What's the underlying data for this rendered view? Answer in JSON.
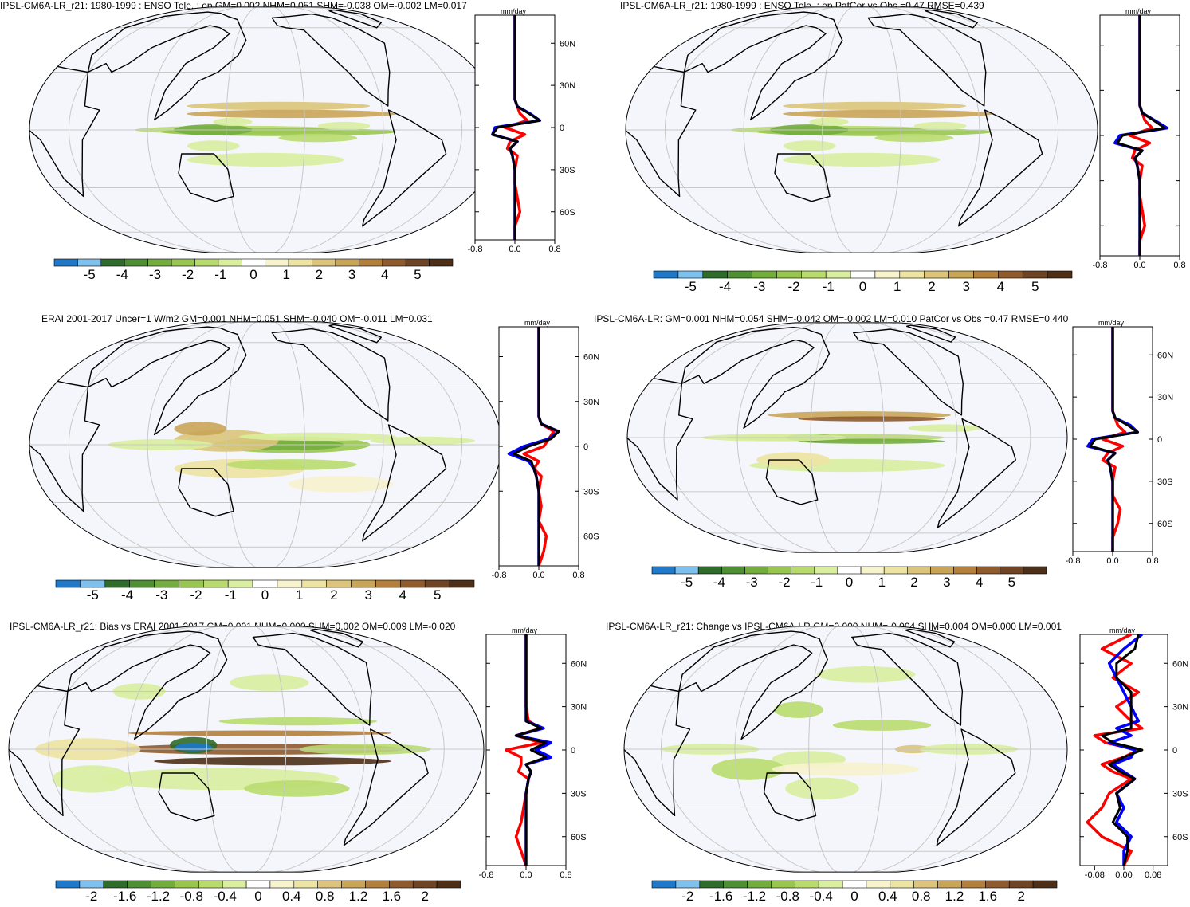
{
  "chart_data": [
    {
      "type": "heatmap",
      "title": "IPSL-CM6A-LR_r21: 1980-1999 : ENSO Tele. : ep GM=0.002 NHM=0.051 SHM=-0.038 OM=-0.002 LM=0.017",
      "colorbar_ticks": [
        "-5",
        "-4",
        "-3",
        "-2",
        "-1",
        "0",
        "1",
        "2",
        "3",
        "4",
        "5"
      ],
      "zonal_mean": {
        "type": "line",
        "unit": "mm/day",
        "x_ticks": [
          "-0.8",
          "0.0",
          "0.8"
        ],
        "xlim": [
          -0.8,
          0.8
        ],
        "ylim": [
          -80,
          80
        ],
        "lat_ticks": [
          "60N",
          "30N",
          "0",
          "30S",
          "60S"
        ],
        "lat_values": [
          -80,
          -70,
          -60,
          -50,
          -40,
          -30,
          -20,
          -15,
          -10,
          -5,
          0,
          5,
          10,
          15,
          20,
          30,
          40,
          50,
          60,
          70,
          80
        ],
        "series": [
          {
            "color": "#ff0000",
            "values": [
              0.0,
              0.0,
              0.1,
              0.05,
              0.0,
              0.0,
              0.05,
              -0.15,
              -0.1,
              0.2,
              -0.2,
              0.25,
              0.1,
              0.05,
              0.0,
              0.0,
              0.0,
              0.0,
              0.0,
              0.0,
              0.0
            ]
          },
          {
            "color": "#0000ff",
            "values": [
              0.0,
              0.0,
              0.0,
              0.0,
              0.0,
              0.0,
              -0.05,
              -0.1,
              0.05,
              -0.45,
              -0.4,
              0.5,
              0.3,
              0.05,
              0.0,
              0.0,
              0.0,
              0.0,
              0.0,
              0.0,
              0.0
            ]
          },
          {
            "color": "#000000",
            "values": [
              0.0,
              0.0,
              0.0,
              0.0,
              0.0,
              0.0,
              -0.05,
              -0.1,
              0.05,
              -0.45,
              -0.35,
              0.5,
              0.28,
              0.05,
              0.0,
              0.0,
              0.0,
              0.0,
              0.0,
              0.0,
              0.0
            ]
          }
        ]
      }
    },
    {
      "type": "heatmap",
      "title": "IPSL-CM6A-LR_r21: 1980-1999 : ENSO Tele. : ep PatCor vs Obs =0.47 RMSE=0.439",
      "colorbar_ticks": [
        "-5",
        "-4",
        "-3",
        "-2",
        "-1",
        "0",
        "1",
        "2",
        "3",
        "4",
        "5"
      ],
      "zonal_mean": {
        "type": "line",
        "unit": "mm/day",
        "x_ticks": [
          "-0.8",
          "0.0",
          "0.8"
        ],
        "xlim": [
          -0.8,
          0.8
        ],
        "ylim": [
          -80,
          80
        ],
        "lat_ticks": [],
        "lat_values": [
          -80,
          -70,
          -60,
          -50,
          -40,
          -30,
          -20,
          -15,
          -10,
          -5,
          0,
          5,
          10,
          15,
          20,
          30,
          40,
          50,
          60,
          70,
          80
        ],
        "series": [
          {
            "color": "#ff0000",
            "values": [
              0.0,
              0.0,
              0.1,
              0.05,
              0.0,
              0.0,
              0.05,
              -0.15,
              -0.1,
              0.2,
              -0.2,
              0.25,
              0.1,
              0.05,
              0.0,
              0.0,
              0.0,
              0.0,
              0.0,
              0.0,
              0.0
            ]
          },
          {
            "color": "#0000ff",
            "values": [
              0.0,
              0.0,
              0.0,
              0.0,
              0.0,
              0.0,
              -0.05,
              -0.1,
              0.05,
              -0.5,
              -0.4,
              0.55,
              0.3,
              0.05,
              0.0,
              0.0,
              0.0,
              0.0,
              0.0,
              0.0,
              0.0
            ]
          },
          {
            "color": "#000000",
            "values": [
              0.0,
              0.0,
              0.0,
              0.0,
              0.0,
              0.0,
              -0.05,
              -0.1,
              0.05,
              -0.45,
              -0.35,
              0.5,
              0.28,
              0.05,
              0.0,
              0.0,
              0.0,
              0.0,
              0.0,
              0.0,
              0.0
            ]
          }
        ]
      }
    },
    {
      "type": "heatmap",
      "title": "ERAI 2001-2017 Uncer=1 W/m2 GM=0.001 NHM=0.051 SHM=-0.040 OM=-0.011 LM=0.031",
      "colorbar_ticks": [
        "-5",
        "-4",
        "-3",
        "-2",
        "-1",
        "0",
        "1",
        "2",
        "3",
        "4",
        "5"
      ],
      "zonal_mean": {
        "type": "line",
        "unit": "mm/day",
        "x_ticks": [
          "-0.8",
          "0.0",
          "0.8"
        ],
        "xlim": [
          -0.8,
          0.8
        ],
        "ylim": [
          -80,
          80
        ],
        "lat_ticks": [
          "60N",
          "30N",
          "0",
          "30S",
          "60S"
        ],
        "lat_values": [
          -80,
          -70,
          -60,
          -50,
          -40,
          -30,
          -20,
          -15,
          -10,
          -5,
          0,
          5,
          10,
          15,
          20,
          30,
          40,
          50,
          60,
          70,
          80
        ],
        "series": [
          {
            "color": "#ff0000",
            "values": [
              0.0,
              0.1,
              0.15,
              0.0,
              0.05,
              0.0,
              0.05,
              -0.1,
              0.0,
              -0.3,
              0.1,
              0.2,
              0.3,
              0.05,
              0.0,
              0.0,
              0.0,
              0.0,
              0.0,
              0.0,
              0.0
            ]
          },
          {
            "color": "#0000ff",
            "values": [
              0.0,
              0.0,
              0.0,
              0.0,
              0.0,
              0.0,
              -0.05,
              -0.1,
              -0.2,
              -0.6,
              -0.3,
              0.2,
              0.4,
              0.05,
              0.0,
              0.0,
              0.0,
              0.0,
              0.0,
              0.0,
              0.0
            ]
          },
          {
            "color": "#000000",
            "values": [
              0.0,
              0.0,
              0.0,
              0.0,
              0.0,
              0.0,
              -0.05,
              -0.1,
              -0.15,
              -0.5,
              -0.2,
              0.25,
              0.4,
              0.05,
              0.0,
              0.0,
              0.0,
              0.0,
              0.0,
              0.0,
              0.0
            ]
          }
        ]
      }
    },
    {
      "type": "heatmap",
      "title": "IPSL-CM6A-LR: GM=0.001 NHM=0.054 SHM=-0.042 OM=-0.002 LM=0.010 PatCor vs Obs =0.47 RMSE=0.440",
      "colorbar_ticks": [
        "-5",
        "-4",
        "-3",
        "-2",
        "-1",
        "0",
        "1",
        "2",
        "3",
        "4",
        "5"
      ],
      "zonal_mean": {
        "type": "line",
        "unit": "mm/day",
        "x_ticks": [
          "-0.8",
          "0.0",
          "0.8"
        ],
        "xlim": [
          -0.8,
          0.8
        ],
        "ylim": [
          -80,
          80
        ],
        "lat_ticks": [
          "60N",
          "30N",
          "0",
          "30S",
          "60S"
        ],
        "lat_values": [
          -80,
          -70,
          -60,
          -50,
          -40,
          -30,
          -20,
          -15,
          -10,
          -5,
          0,
          5,
          10,
          15,
          20,
          30,
          40,
          50,
          60,
          70,
          80
        ],
        "series": [
          {
            "color": "#ff0000",
            "values": [
              0.0,
              0.0,
              0.1,
              0.15,
              0.0,
              0.0,
              0.05,
              -0.2,
              -0.1,
              0.2,
              -0.2,
              0.25,
              0.1,
              0.05,
              0.0,
              0.0,
              0.0,
              0.0,
              0.0,
              0.0,
              0.0
            ]
          },
          {
            "color": "#0000ff",
            "values": [
              0.0,
              0.0,
              0.0,
              0.0,
              0.0,
              0.0,
              -0.05,
              -0.1,
              0.05,
              -0.5,
              -0.4,
              0.5,
              0.35,
              0.05,
              0.0,
              0.0,
              0.0,
              0.0,
              0.0,
              0.0,
              0.0
            ]
          },
          {
            "color": "#000000",
            "values": [
              0.0,
              0.0,
              0.0,
              0.0,
              0.0,
              0.0,
              -0.05,
              -0.1,
              0.05,
              -0.45,
              -0.35,
              0.5,
              0.3,
              0.05,
              0.0,
              0.0,
              0.0,
              0.0,
              0.0,
              0.0,
              0.0
            ]
          }
        ]
      }
    },
    {
      "type": "heatmap",
      "title": "IPSL-CM6A-LR_r21: Bias vs ERAI 2001-2017 GM=0.001 NHM=0.000 SHM=0.002 OM=0.009 LM=-0.020",
      "colorbar_ticks": [
        "-2",
        "-1.6",
        "-1.2",
        "-0.8",
        "-0.4",
        "0",
        "0.4",
        "0.8",
        "1.2",
        "1.6",
        "2"
      ],
      "zonal_mean": {
        "type": "line",
        "unit": "mm/day",
        "x_ticks": [
          "-0.8",
          "0.0",
          "0.8"
        ],
        "xlim": [
          -0.8,
          0.8
        ],
        "ylim": [
          -80,
          80
        ],
        "lat_ticks": [
          "60N",
          "30N",
          "0",
          "30S",
          "60S"
        ],
        "lat_values": [
          -80,
          -70,
          -60,
          -50,
          -40,
          -30,
          -20,
          -15,
          -10,
          -5,
          0,
          5,
          10,
          15,
          20,
          30,
          40,
          50,
          60,
          70,
          80
        ],
        "series": [
          {
            "color": "#ff0000",
            "values": [
              0.0,
              -0.1,
              -0.2,
              -0.1,
              -0.05,
              0.0,
              0.05,
              -0.15,
              -0.1,
              -0.1,
              -0.4,
              0.3,
              -0.2,
              0.3,
              0.05,
              0.0,
              0.0,
              0.0,
              0.0,
              0.0,
              0.0
            ]
          },
          {
            "color": "#0000ff",
            "values": [
              0.0,
              0.0,
              0.0,
              0.0,
              0.0,
              0.0,
              0.05,
              0.1,
              0.0,
              0.5,
              0.2,
              0.5,
              -0.2,
              0.35,
              0.0,
              0.0,
              0.0,
              0.0,
              0.0,
              0.0,
              0.0
            ]
          },
          {
            "color": "#000000",
            "values": [
              0.0,
              0.0,
              0.0,
              0.0,
              0.0,
              0.0,
              0.05,
              0.1,
              0.0,
              0.4,
              0.1,
              0.4,
              -0.2,
              0.3,
              0.0,
              0.0,
              0.0,
              0.0,
              0.0,
              0.0,
              0.0
            ]
          }
        ]
      }
    },
    {
      "type": "heatmap",
      "title": "IPSL-CM6A-LR_r21: Change vs IPSL-CM6A-LR GM=0.000 NHM=-0.004 SHM=0.004 OM=0.000 LM=0.001",
      "colorbar_ticks": [
        "-2",
        "-1.6",
        "-1.2",
        "-0.8",
        "-0.4",
        "0",
        "0.4",
        "0.8",
        "1.2",
        "1.6",
        "2"
      ],
      "zonal_mean": {
        "type": "line",
        "unit": "mm/day",
        "x_ticks": [
          "-0.08",
          "0.00",
          "0.08"
        ],
        "xlim": [
          -0.12,
          0.12
        ],
        "ylim": [
          -80,
          80
        ],
        "lat_ticks": [
          "60N",
          "30N",
          "0",
          "30S",
          "60S"
        ],
        "lat_values": [
          -80,
          -70,
          -60,
          -50,
          -40,
          -30,
          -20,
          -15,
          -10,
          -5,
          0,
          5,
          10,
          15,
          20,
          30,
          40,
          50,
          60,
          70,
          80
        ],
        "series": [
          {
            "color": "#ff0000",
            "values": [
              0.0,
              0.02,
              -0.06,
              -0.1,
              -0.06,
              -0.04,
              0.02,
              -0.03,
              -0.06,
              0.0,
              0.04,
              -0.05,
              -0.08,
              0.05,
              0.02,
              -0.02,
              0.04,
              -0.03,
              0.02,
              -0.06,
              0.02
            ]
          },
          {
            "color": "#0000ff",
            "values": [
              0.0,
              0.0,
              0.02,
              -0.02,
              0.0,
              -0.02,
              0.03,
              0.0,
              -0.03,
              0.02,
              0.03,
              -0.04,
              0.02,
              -0.02,
              0.04,
              0.02,
              0.0,
              -0.02,
              -0.04,
              0.0,
              0.05
            ]
          },
          {
            "color": "#000000",
            "values": [
              0.0,
              0.01,
              0.01,
              -0.03,
              -0.01,
              -0.02,
              0.03,
              -0.01,
              -0.04,
              0.0,
              0.05,
              -0.03,
              -0.06,
              0.02,
              0.02,
              0.02,
              0.02,
              -0.02,
              -0.02,
              0.03,
              0.04
            ]
          }
        ]
      }
    }
  ],
  "colors": {
    "ocean": "#f5f6fc",
    "palette": [
      "#1f78c8",
      "#7ec0ee",
      "#2f6b2a",
      "#4f8f33",
      "#73ad3e",
      "#99c64f",
      "#b9db6e",
      "#d9ee9f",
      "#ffffff",
      "#f7f3cd",
      "#ede3a2",
      "#dcc57a",
      "#c9a557",
      "#b37f3b",
      "#8f5b2d",
      "#6e4424",
      "#4d2f17"
    ],
    "grid": "#c8c8c8",
    "coast": "#000000"
  }
}
